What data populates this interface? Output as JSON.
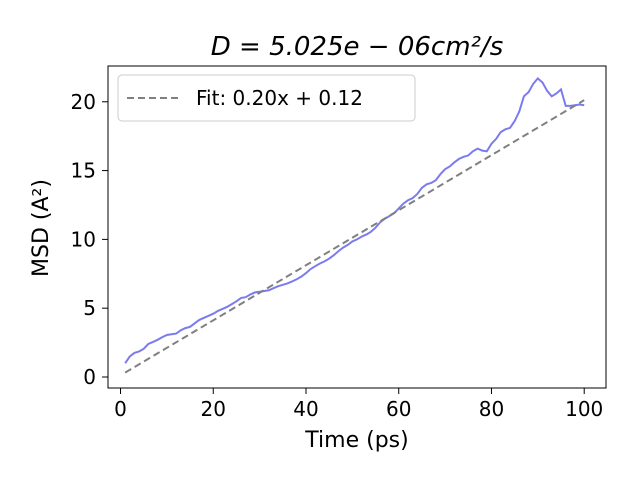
{
  "chart_data": {
    "type": "line",
    "title": "D = 5.025e − 06cm²/s",
    "xlabel": "Time (ps)",
    "ylabel": "MSD (A²)",
    "xlim": [
      -2.7,
      104.7
    ],
    "ylim": [
      -0.8,
      22.6
    ],
    "xticks": [
      0,
      20,
      40,
      60,
      80,
      100
    ],
    "yticks": [
      0,
      5,
      10,
      15,
      20
    ],
    "grid": false,
    "legend": {
      "placement": "top-left",
      "entries": [
        "Fit: 0.20x + 0.12"
      ]
    },
    "colors": {
      "msd": "#7b7bf0",
      "fit": "#808080"
    },
    "series": [
      {
        "values_x": [
          1,
          2,
          3,
          4,
          5,
          6,
          7,
          8,
          9,
          10,
          11,
          12,
          13,
          14,
          15,
          16,
          17,
          18,
          19,
          20,
          21,
          22,
          23,
          24,
          25,
          26,
          27,
          28,
          29,
          30,
          31,
          32,
          33,
          34,
          35,
          36,
          37,
          38,
          39,
          40,
          41,
          42,
          43,
          44,
          45,
          46,
          47,
          48,
          49,
          50,
          51,
          52,
          53,
          54,
          55,
          56,
          57,
          58,
          59,
          60,
          61,
          62,
          63,
          64,
          65,
          66,
          67,
          68,
          69,
          70,
          71,
          72,
          73,
          74,
          75,
          76,
          77,
          78,
          79,
          80,
          81,
          82,
          83,
          84,
          85,
          86,
          87,
          88,
          89,
          90,
          91,
          92,
          93,
          94,
          95,
          96,
          97,
          98,
          99,
          100
        ],
        "values_y": [
          1.0,
          1.5,
          1.75,
          1.85,
          2.05,
          2.4,
          2.55,
          2.7,
          2.9,
          3.05,
          3.1,
          3.15,
          3.4,
          3.55,
          3.65,
          3.9,
          4.15,
          4.3,
          4.45,
          4.6,
          4.8,
          4.95,
          5.1,
          5.3,
          5.5,
          5.75,
          5.8,
          6.0,
          6.15,
          6.2,
          6.25,
          6.3,
          6.45,
          6.6,
          6.7,
          6.8,
          6.95,
          7.1,
          7.3,
          7.55,
          7.85,
          8.05,
          8.25,
          8.4,
          8.6,
          8.85,
          9.15,
          9.4,
          9.6,
          9.85,
          10.0,
          10.2,
          10.35,
          10.55,
          10.85,
          11.25,
          11.5,
          11.7,
          11.9,
          12.25,
          12.6,
          12.85,
          13.0,
          13.3,
          13.75,
          14.0,
          14.1,
          14.3,
          14.75,
          15.1,
          15.3,
          15.6,
          15.85,
          16.0,
          16.1,
          16.4,
          16.6,
          16.45,
          16.4,
          16.95,
          17.3,
          17.8,
          18.0,
          18.1,
          18.6,
          19.3,
          20.4,
          20.7,
          21.3,
          21.7,
          21.4,
          20.8,
          20.4,
          20.6,
          20.9,
          19.7,
          19.7,
          19.75,
          19.8,
          19.75
        ]
      },
      {
        "name": "Fit: 0.20x + 0.12",
        "slope": 0.2,
        "intercept": 0.12,
        "x_range": [
          1,
          100
        ]
      }
    ]
  }
}
